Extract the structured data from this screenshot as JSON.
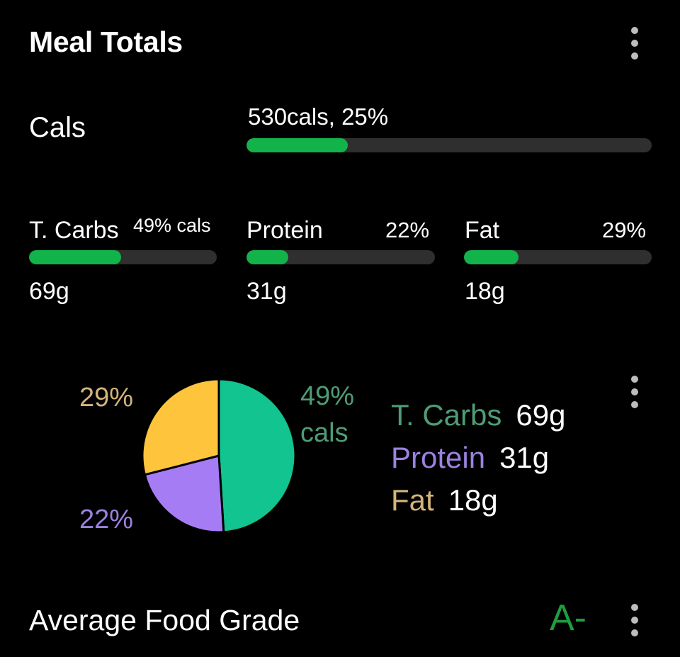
{
  "header": {
    "title": "Meal Totals"
  },
  "calories": {
    "label": "Cals",
    "value_text": "530cals, 25%",
    "progress": 0.25
  },
  "macros": [
    {
      "name": "T. Carbs",
      "percent_text": "49% cals",
      "progress": 0.49,
      "grams": "69g"
    },
    {
      "name": "Protein",
      "percent_text": "22%",
      "progress": 0.22,
      "grams": "31g"
    },
    {
      "name": "Fat",
      "percent_text": "29%",
      "progress": 0.29,
      "grams": "18g"
    }
  ],
  "pie": {
    "labels": {
      "fat": "29%",
      "protein": "22%",
      "carbs_line1": "49%",
      "carbs_line2": "cals"
    },
    "legend": [
      {
        "name": "T. Carbs",
        "grams": "69g"
      },
      {
        "name": "Protein",
        "grams": "31g"
      },
      {
        "name": "Fat",
        "grams": "18g"
      }
    ]
  },
  "chart_data": {
    "type": "pie",
    "categories": [
      "T. Carbs",
      "Protein",
      "Fat"
    ],
    "values": [
      49,
      22,
      29
    ],
    "colors": [
      "#12c48f",
      "#a67cf5",
      "#fdc43c"
    ],
    "label_colors": [
      "#4f9c75",
      "#9b82e0",
      "#d2b47a"
    ]
  },
  "grade": {
    "label": "Average Food Grade",
    "value": "A-"
  },
  "colors": {
    "background": "#000000",
    "progress_fill": "#12b34a",
    "progress_track": "#2f2f2f",
    "grade": "#1f9e3d"
  }
}
